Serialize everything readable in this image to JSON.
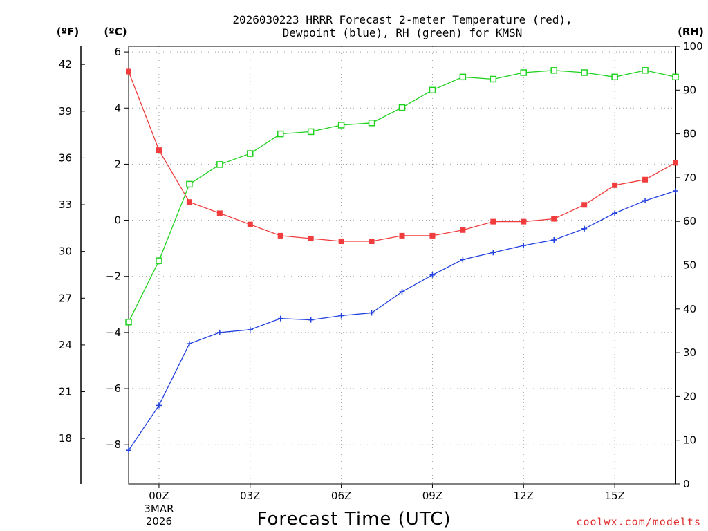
{
  "chart_data": {
    "type": "line",
    "title_line1": "2026030223 HRRR Forecast 2-meter Temperature (red),",
    "title_line2": "Dewpoint (blue), RH (green) for KMSN",
    "xlabel": "Forecast Time (UTC)",
    "credit": "coolwx.com/modelts",
    "axis_units": {
      "f": "(ºF)",
      "c": "(ºC)",
      "rh": "(RH)"
    },
    "hours": [
      -1,
      0,
      1,
      2,
      3,
      4,
      5,
      6,
      7,
      8,
      9,
      10,
      11,
      12,
      13,
      14,
      15,
      16,
      17
    ],
    "x_ticks": [
      {
        "hour": 0,
        "label": "00Z"
      },
      {
        "hour": 3,
        "label": "03Z"
      },
      {
        "hour": 6,
        "label": "06Z"
      },
      {
        "hour": 9,
        "label": "09Z"
      },
      {
        "hour": 12,
        "label": "12Z"
      },
      {
        "hour": 15,
        "label": "15Z"
      }
    ],
    "date_label_line1": "3MAR",
    "date_label_line2": "2026",
    "xlim": [
      -1,
      17
    ],
    "c_ylim": [
      -9.4,
      6.2
    ],
    "c_ticks": [
      {
        "value": 6,
        "label": "6"
      },
      {
        "value": 4,
        "label": "4"
      },
      {
        "value": 2,
        "label": "2"
      },
      {
        "value": 0,
        "label": "0"
      },
      {
        "value": -2,
        "label": "−2"
      },
      {
        "value": -4,
        "label": "−4"
      },
      {
        "value": -6,
        "label": "−6"
      },
      {
        "value": -8,
        "label": "−8"
      }
    ],
    "f_ticks": [
      {
        "value": 42,
        "label": "42"
      },
      {
        "value": 39,
        "label": "39"
      },
      {
        "value": 36,
        "label": "36"
      },
      {
        "value": 33,
        "label": "33"
      },
      {
        "value": 30,
        "label": "30"
      },
      {
        "value": 27,
        "label": "27"
      },
      {
        "value": 24,
        "label": "24"
      },
      {
        "value": 21,
        "label": "21"
      },
      {
        "value": 18,
        "label": "18"
      }
    ],
    "rh_ylim": [
      0,
      100
    ],
    "rh_ticks": [
      {
        "value": 100,
        "label": "100"
      },
      {
        "value": 90,
        "label": "90"
      },
      {
        "value": 80,
        "label": "80"
      },
      {
        "value": 70,
        "label": "70"
      },
      {
        "value": 60,
        "label": "60"
      },
      {
        "value": 50,
        "label": "50"
      },
      {
        "value": 40,
        "label": "40"
      },
      {
        "value": 30,
        "label": "30"
      },
      {
        "value": 20,
        "label": "20"
      },
      {
        "value": 10,
        "label": "10"
      },
      {
        "value": 0,
        "label": "0"
      }
    ],
    "series": [
      {
        "name": "Temperature",
        "unit": "C",
        "color": "#f03c3c",
        "marker": "filled-square",
        "values": [
          5.3,
          2.5,
          0.65,
          0.25,
          -0.15,
          -0.55,
          -0.65,
          -0.75,
          -0.75,
          -0.55,
          -0.55,
          -0.35,
          -0.05,
          -0.05,
          0.05,
          0.55,
          1.25,
          1.45,
          2.05
        ]
      },
      {
        "name": "Dewpoint",
        "unit": "C",
        "color": "#2040e0",
        "marker": "plus",
        "values": [
          -8.2,
          -6.6,
          -4.4,
          -4.0,
          -3.9,
          -3.5,
          -3.55,
          -3.4,
          -3.3,
          -2.55,
          -1.95,
          -1.4,
          -1.15,
          -0.9,
          -0.7,
          -0.3,
          0.25,
          0.7,
          1.05
        ]
      },
      {
        "name": "Relative Humidity",
        "unit": "%",
        "color": "#1ed21e",
        "marker": "open-square",
        "values": [
          37,
          51,
          68.5,
          73,
          75.5,
          80,
          80.5,
          82,
          82.5,
          86,
          90,
          93,
          92.5,
          94,
          94.5,
          94,
          93,
          94.5,
          93
        ]
      }
    ]
  }
}
